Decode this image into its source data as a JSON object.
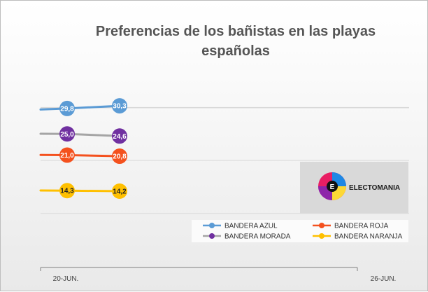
{
  "chart_data": {
    "type": "line",
    "title_line1": "Preferencias de los bañistas en las playas",
    "title_line2": "españolas",
    "x_ticks": [
      "20-JUN.",
      "26-JUN."
    ],
    "series": [
      {
        "name": "BANDERA AZUL",
        "color": "#5b9bd5",
        "label_dark": false,
        "values": [
          29.8,
          30.3
        ],
        "labels": [
          "29,8",
          "30,3"
        ]
      },
      {
        "name": "BANDERA ROJA",
        "color": "#f4511e",
        "label_dark": false,
        "values": [
          21.0,
          20.8
        ],
        "labels": [
          "21,0",
          "20,8"
        ]
      },
      {
        "name": "BANDERA MORADA",
        "color": "#a5a5a5",
        "marker_color": "#7030a0",
        "label_dark": false,
        "values": [
          25.0,
          24.6
        ],
        "labels": [
          "25,0",
          "24,6"
        ]
      },
      {
        "name": "BANDERA NARANJA",
        "color": "#ffc000",
        "label_dark": true,
        "values": [
          14.3,
          14.2
        ],
        "labels": [
          "14,3",
          "14,2"
        ]
      }
    ],
    "grid": true,
    "legend_position": "bottom-right",
    "watermark": "ELECTOMANIA"
  }
}
